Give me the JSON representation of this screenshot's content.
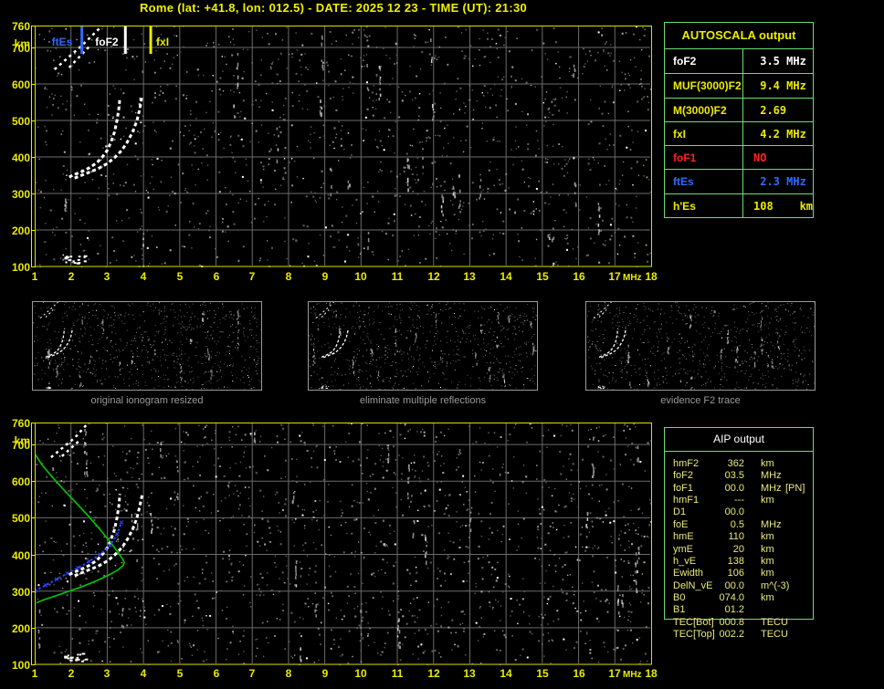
{
  "title": "Rome (lat: +41.8, lon: 012.5) - DATE: 2025 12 23 - TIME (UT): 21:30",
  "colors": {
    "accent_yellow": "#ebeb00",
    "border_green": "#6ede6e",
    "grid_gray": "#6b6b6b",
    "thumb_gray": "#9a9a9a",
    "trace_white": "#ffffff",
    "profile_green": "#00c800",
    "trace_blue": "#2f46ff",
    "marker_blue": "#2e6bff",
    "value_red": "#ff2020",
    "aip_yellow": "#e9e97c"
  },
  "axis": {
    "x_ticks": [
      1,
      2,
      3,
      4,
      5,
      6,
      7,
      8,
      9,
      10,
      11,
      12,
      13,
      14,
      15,
      16,
      17,
      18
    ],
    "x_unit": "MHz",
    "y_ticks": [
      760,
      700,
      600,
      500,
      400,
      300,
      200,
      100
    ],
    "y_unit": "km"
  },
  "autoscala": {
    "header": "AUTOSCALA output",
    "rows": [
      {
        "label": "foF2",
        "value": " 3.5 MHz",
        "color": "#ffffff"
      },
      {
        "label": "MUF(3000)F2",
        "value": " 9.4 MHz",
        "color": "#ebeb00"
      },
      {
        "label": "M(3000)F2",
        "value": " 2.69",
        "color": "#ebeb00"
      },
      {
        "label": "fxI",
        "value": " 4.2 MHz",
        "color": "#ebeb00"
      },
      {
        "label": "foF1",
        "value": "NO",
        "color": "#ff2020"
      },
      {
        "label": "ftEs",
        "value": " 2.3 MHz",
        "color": "#2e6bff"
      },
      {
        "label": "h'Es",
        "value": "108    km",
        "color": "#ebeb00"
      }
    ]
  },
  "aip": {
    "header": "AIP output",
    "rows": [
      {
        "label": "hmF2",
        "value": "362",
        "unit": "km",
        "extra": ""
      },
      {
        "label": "foF2",
        "value": "03.5",
        "unit": "MHz",
        "extra": ""
      },
      {
        "label": "foF1",
        "value": "00.0",
        "unit": "MHz",
        "extra": "[PN]"
      },
      {
        "label": "hmF1",
        "value": "---",
        "unit": "km",
        "extra": ""
      },
      {
        "label": "D1",
        "value": "00.0",
        "unit": "",
        "extra": ""
      },
      {
        "label": "foE",
        "value": "0.5",
        "unit": "MHz",
        "extra": ""
      },
      {
        "label": "hmE",
        "value": "110",
        "unit": "km",
        "extra": ""
      },
      {
        "label": "ymE",
        "value": "20",
        "unit": "km",
        "extra": ""
      },
      {
        "label": "h_vE",
        "value": "138",
        "unit": "km",
        "extra": ""
      },
      {
        "label": "Ewidth",
        "value": "106",
        "unit": "km",
        "extra": ""
      },
      {
        "label": "DelN_vE",
        "value": "00.0",
        "unit": "m^(-3)",
        "extra": ""
      },
      {
        "label": "B0",
        "value": "074.0",
        "unit": "km",
        "extra": ""
      },
      {
        "label": "B1",
        "value": "01.2",
        "unit": "",
        "extra": ""
      },
      {
        "label": "TEC[Bot]",
        "value": "000.8",
        "unit": "TECU",
        "extra": ""
      },
      {
        "label": "TEC[Top]",
        "value": "002.2",
        "unit": "TECU",
        "extra": ""
      }
    ]
  },
  "thumbnails": [
    {
      "caption": "original ionogram resized"
    },
    {
      "caption": "eliminate multiple reflections"
    },
    {
      "caption": "evidence F2 trace"
    }
  ],
  "chart_data": {
    "type": "scatter",
    "x_range": [
      1,
      18
    ],
    "x_unit": "MHz",
    "y_range": [
      100,
      760
    ],
    "y_unit": "km",
    "top_plot": {
      "markers": [
        {
          "label": "ftEs",
          "f": 2.3,
          "color": "#2e6bff",
          "side": "left"
        },
        {
          "label": "foF2",
          "f": 3.5,
          "color": "#ffffff",
          "side": "left"
        },
        {
          "label": "fxI",
          "f": 4.2,
          "color": "#ebeb00",
          "side": "right"
        }
      ],
      "o_trace": [
        [
          1.95,
          345
        ],
        [
          2.1,
          352
        ],
        [
          2.3,
          360
        ],
        [
          2.5,
          370
        ],
        [
          2.7,
          383
        ],
        [
          2.85,
          398
        ],
        [
          3.0,
          418
        ],
        [
          3.1,
          440
        ],
        [
          3.2,
          468
        ],
        [
          3.27,
          500
        ],
        [
          3.32,
          532
        ],
        [
          3.35,
          562
        ]
      ],
      "x_trace": [
        [
          2.1,
          342
        ],
        [
          2.3,
          350
        ],
        [
          2.5,
          358
        ],
        [
          2.75,
          368
        ],
        [
          3.0,
          382
        ],
        [
          3.2,
          398
        ],
        [
          3.4,
          418
        ],
        [
          3.55,
          440
        ],
        [
          3.7,
          468
        ],
        [
          3.82,
          500
        ],
        [
          3.9,
          532
        ],
        [
          3.95,
          562
        ]
      ],
      "streaks": [
        [
          [
            1.55,
            640
          ],
          [
            2.3,
            705
          ],
          [
            3.05,
            778
          ]
        ],
        [
          [
            1.95,
            645
          ],
          [
            2.5,
            702
          ]
        ]
      ],
      "es_cluster": {
        "f_range": [
          1.8,
          2.4
        ],
        "km_range": [
          110,
          132
        ]
      }
    },
    "bottom_plot": {
      "o_trace": [
        [
          1.95,
          345
        ],
        [
          2.1,
          352
        ],
        [
          2.3,
          360
        ],
        [
          2.5,
          370
        ],
        [
          2.7,
          383
        ],
        [
          2.85,
          398
        ],
        [
          3.0,
          418
        ],
        [
          3.1,
          440
        ],
        [
          3.2,
          468
        ],
        [
          3.27,
          500
        ],
        [
          3.32,
          532
        ],
        [
          3.35,
          565
        ]
      ],
      "x_trace": [
        [
          2.1,
          342
        ],
        [
          2.3,
          350
        ],
        [
          2.5,
          358
        ],
        [
          2.75,
          368
        ],
        [
          3.0,
          382
        ],
        [
          3.2,
          398
        ],
        [
          3.4,
          418
        ],
        [
          3.55,
          440
        ],
        [
          3.7,
          468
        ],
        [
          3.82,
          500
        ],
        [
          3.9,
          532
        ],
        [
          3.97,
          565
        ]
      ],
      "streaks": [
        [
          [
            1.45,
            665
          ],
          [
            2.1,
            718
          ],
          [
            2.65,
            778
          ]
        ],
        [
          [
            1.75,
            668
          ],
          [
            2.25,
            712
          ]
        ]
      ],
      "es_cluster": {
        "f_range": [
          1.8,
          2.4
        ],
        "km_range": [
          110,
          132
        ]
      },
      "profile": [
        [
          1.02,
          672
        ],
        [
          1.2,
          645
        ],
        [
          1.45,
          615
        ],
        [
          1.75,
          582
        ],
        [
          2.1,
          545
        ],
        [
          2.45,
          508
        ],
        [
          2.8,
          468
        ],
        [
          3.1,
          432
        ],
        [
          3.3,
          405
        ],
        [
          3.42,
          388
        ],
        [
          3.47,
          378
        ],
        [
          3.44,
          370
        ],
        [
          3.3,
          358
        ],
        [
          3.05,
          344
        ],
        [
          2.7,
          328
        ],
        [
          2.3,
          312
        ],
        [
          1.9,
          298
        ],
        [
          1.55,
          286
        ],
        [
          1.25,
          276
        ],
        [
          1.05,
          268
        ]
      ],
      "fitted_trace": [
        [
          1.0,
          300
        ],
        [
          1.15,
          308
        ],
        [
          1.3,
          316
        ],
        [
          1.45,
          324
        ],
        [
          1.6,
          332
        ],
        [
          1.75,
          340
        ],
        [
          1.9,
          348
        ],
        [
          2.05,
          356
        ],
        [
          2.2,
          364
        ],
        [
          2.35,
          372
        ],
        [
          2.5,
          381
        ],
        [
          2.65,
          390
        ],
        [
          2.8,
          400
        ],
        [
          2.95,
          412
        ],
        [
          3.08,
          425
        ],
        [
          3.18,
          440
        ],
        [
          3.27,
          456
        ],
        [
          3.34,
          472
        ],
        [
          3.39,
          487
        ]
      ]
    }
  }
}
